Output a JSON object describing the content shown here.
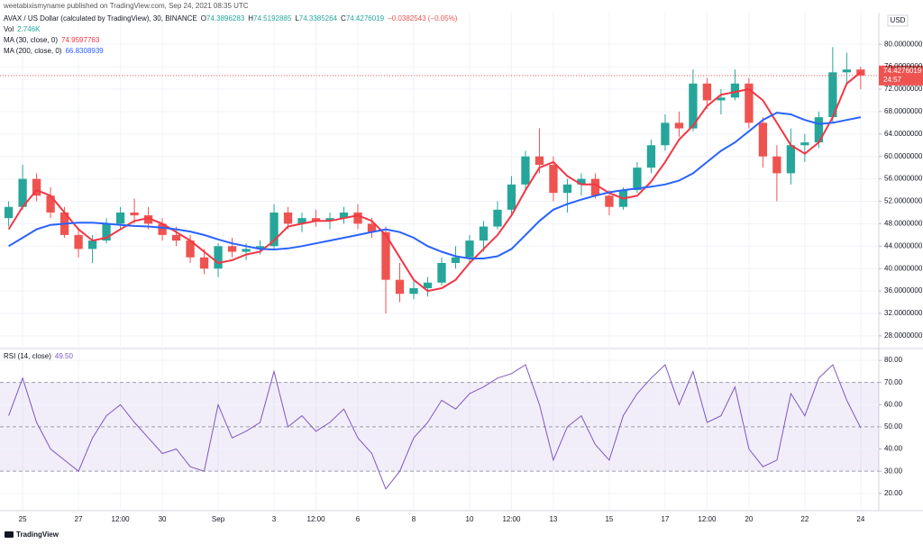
{
  "published": "weetabixismyname published on TradingView.com, Sep 24, 2021 08:35 UTC",
  "footer": "TradingView",
  "chart_data": [
    {
      "type": "candlestick",
      "title": "AVAX / US Dollar (calculated by TradingView), 30, BINANCE",
      "quote": [
        {
          "label": "O",
          "value": "74.3896283"
        },
        {
          "label": "H",
          "value": "74.5192885"
        },
        {
          "label": "L",
          "value": "74.3385264"
        },
        {
          "label": "C",
          "value": "74.4276019"
        }
      ],
      "change": "−0.0382543 (−0.05%)",
      "volume_label": "Vol",
      "volume_value": "2.746K",
      "currency": "USD",
      "last_price_label": "74.4276019",
      "countdown": "24:57",
      "up_color": "#26a69a",
      "down_color": "#ef5350",
      "xlim": [
        -0.62,
        62.3
      ],
      "xticks": [
        {
          "value": 1,
          "label": "25"
        },
        {
          "value": 5,
          "label": "27"
        },
        {
          "value": 8,
          "label": "12:00"
        },
        {
          "value": 11,
          "label": "30"
        },
        {
          "value": 15,
          "label": "Sep"
        },
        {
          "value": 19,
          "label": "3"
        },
        {
          "value": 22,
          "label": "12:00"
        },
        {
          "value": 25,
          "label": "6"
        },
        {
          "value": 29,
          "label": "8"
        },
        {
          "value": 33,
          "label": "10"
        },
        {
          "value": 36,
          "label": "12:00"
        },
        {
          "value": 39,
          "label": "13"
        },
        {
          "value": 43,
          "label": "15"
        },
        {
          "value": 47,
          "label": "17"
        },
        {
          "value": 50,
          "label": "12:00"
        },
        {
          "value": 53,
          "label": "20"
        },
        {
          "value": 57,
          "label": "22"
        },
        {
          "value": 61,
          "label": "24"
        }
      ],
      "ylim": [
        25.9,
        85.65
      ],
      "yticks": [
        {
          "value": 28,
          "label": "28.0000000"
        },
        {
          "value": 32,
          "label": "32.0000000"
        },
        {
          "value": 36,
          "label": "36.0000000"
        },
        {
          "value": 40,
          "label": "40.0000000"
        },
        {
          "value": 44,
          "label": "44.0000000"
        },
        {
          "value": 48,
          "label": "48.0000000"
        },
        {
          "value": 52,
          "label": "52.0000000"
        },
        {
          "value": 56,
          "label": "56.0000000"
        },
        {
          "value": 60,
          "label": "60.0000000"
        },
        {
          "value": 64,
          "label": "64.0000000"
        },
        {
          "value": 68,
          "label": "68.0000000"
        },
        {
          "value": 72,
          "label": "72.0000000"
        },
        {
          "value": 76,
          "label": "76.0000000"
        },
        {
          "value": 80,
          "label": "80.0000000"
        }
      ],
      "grid": true,
      "open": [
        49,
        51,
        56,
        53,
        50,
        46,
        43.5,
        45,
        48,
        50,
        49.5,
        48,
        46,
        45,
        42,
        40,
        44,
        43,
        43.5,
        44,
        50,
        48,
        49,
        48.5,
        49,
        50,
        48,
        46.5,
        38,
        35.5,
        36.5,
        37.5,
        41,
        42,
        45,
        47.5,
        50.5,
        55,
        60,
        58.5,
        53.5,
        55,
        56,
        53,
        51,
        54,
        58,
        62,
        66,
        65,
        73,
        70,
        70.5,
        73,
        66,
        60,
        57,
        62,
        62.5,
        67,
        75,
        75.5
      ],
      "high": [
        52,
        58.5,
        57,
        54.5,
        51,
        47,
        46,
        49,
        51,
        52.5,
        51,
        49,
        47.5,
        46,
        43.5,
        44.5,
        45.5,
        44.5,
        45,
        51.5,
        51,
        50,
        50.5,
        50,
        51,
        51.5,
        49,
        47.5,
        41,
        38,
        38.5,
        42,
        44,
        46,
        48.5,
        52,
        56.5,
        61,
        65,
        60,
        56,
        57,
        57,
        54,
        54.5,
        59,
        63,
        67.5,
        68,
        75.5,
        74,
        72,
        75.5,
        74,
        67,
        62,
        65,
        64,
        68,
        79.5,
        78.5,
        76
      ],
      "low": [
        47.5,
        50.5,
        52,
        49,
        45.5,
        42,
        41,
        44.5,
        47,
        48,
        47,
        45,
        44,
        41,
        39,
        38.5,
        42,
        41.5,
        42.5,
        43.5,
        47,
        46.5,
        47.5,
        47,
        48,
        47,
        45.5,
        32,
        34,
        34.5,
        35,
        37,
        40,
        41,
        43,
        47,
        49.5,
        54,
        57,
        52,
        50,
        53,
        52.5,
        49.5,
        50.5,
        53.5,
        57,
        61,
        63.5,
        64.5,
        68.5,
        67.5,
        70,
        65,
        58,
        52,
        55,
        59,
        61.5,
        66,
        73,
        72
      ],
      "close": [
        51,
        56,
        53,
        50,
        46,
        43.5,
        45,
        48,
        50,
        49.5,
        48,
        46,
        45,
        42,
        40,
        44,
        43,
        43.5,
        44,
        50,
        48,
        49,
        48.5,
        49,
        50,
        48,
        46.5,
        38,
        35.5,
        36.5,
        37.5,
        41,
        42,
        45,
        47.5,
        50.5,
        55,
        60,
        58.5,
        53.5,
        55,
        56,
        53,
        51,
        54,
        58,
        62,
        66,
        65,
        73,
        70,
        70.5,
        73,
        66,
        60,
        57,
        62,
        62.5,
        67,
        75,
        75.5,
        74.43
      ],
      "series": [
        {
          "name": "MA (30, close, 0)",
          "color": "#f23645",
          "last_label": "74.9597763",
          "values": [
            47,
            51,
            54,
            53,
            50,
            47,
            45,
            45.5,
            47,
            48.5,
            49,
            48,
            46.5,
            45,
            43,
            41,
            41.5,
            42.5,
            43,
            45,
            47.5,
            48,
            48.5,
            48.5,
            49,
            49.5,
            48.5,
            46,
            42,
            38,
            36,
            36.5,
            38,
            41,
            43.5,
            46,
            49.5,
            54,
            58,
            59,
            56.5,
            55,
            55,
            53.5,
            52.5,
            53,
            55.5,
            59,
            63,
            65.5,
            69,
            71,
            71.5,
            72,
            70,
            66,
            62,
            60.5,
            62.5,
            67,
            73,
            75
          ]
        },
        {
          "name": "MA (200, close, 0)",
          "color": "#2962ff",
          "last_label": "66.8308939",
          "values": [
            44,
            45.5,
            47,
            47.8,
            48,
            48.2,
            48.2,
            48,
            47.8,
            47.6,
            47.5,
            47.3,
            47,
            46.6,
            46,
            45.2,
            44.5,
            44,
            43.5,
            43.4,
            43.6,
            44,
            44.5,
            45,
            45.5,
            46,
            46.5,
            47,
            46.5,
            45.5,
            44,
            43,
            42.2,
            41.8,
            41.8,
            42.2,
            43.5,
            46,
            48.5,
            50.5,
            51.5,
            52.3,
            53,
            53.6,
            54,
            54.3,
            54.6,
            55,
            55.7,
            57,
            59,
            61,
            62.5,
            64.5,
            66.5,
            67.8,
            67.5,
            66.5,
            65.8,
            66,
            66.5,
            67
          ]
        }
      ]
    },
    {
      "type": "line",
      "xlim": [
        -0.62,
        62.3
      ],
      "ylim": [
        12.6,
        84.9
      ],
      "yticks": [
        {
          "value": 20,
          "label": "20.00"
        },
        {
          "value": 30,
          "label": "30.00"
        },
        {
          "value": 40,
          "label": "40.00"
        },
        {
          "value": 50,
          "label": "50.00"
        },
        {
          "value": 60,
          "label": "60.00"
        },
        {
          "value": 70,
          "label": "70.00"
        },
        {
          "value": 80,
          "label": "80.00"
        }
      ],
      "band": [
        30,
        70
      ],
      "midline": 50,
      "band_color": "#7e57c2",
      "series": [
        {
          "name": "RSI (14, close)",
          "color": "#7e57c2",
          "last_label": "49.50",
          "values": [
            55,
            72,
            52,
            40,
            35,
            30,
            45,
            55,
            60,
            52,
            45,
            38,
            40,
            32,
            30,
            60,
            45,
            48,
            52,
            75,
            50,
            55,
            48,
            52,
            58,
            45,
            38,
            22,
            30,
            45,
            52,
            62,
            58,
            65,
            68,
            72,
            74,
            78,
            60,
            35,
            50,
            55,
            42,
            35,
            55,
            65,
            72,
            78,
            60,
            75,
            52,
            55,
            68,
            40,
            32,
            35,
            65,
            55,
            72,
            78,
            62,
            49.5
          ]
        }
      ]
    }
  ]
}
